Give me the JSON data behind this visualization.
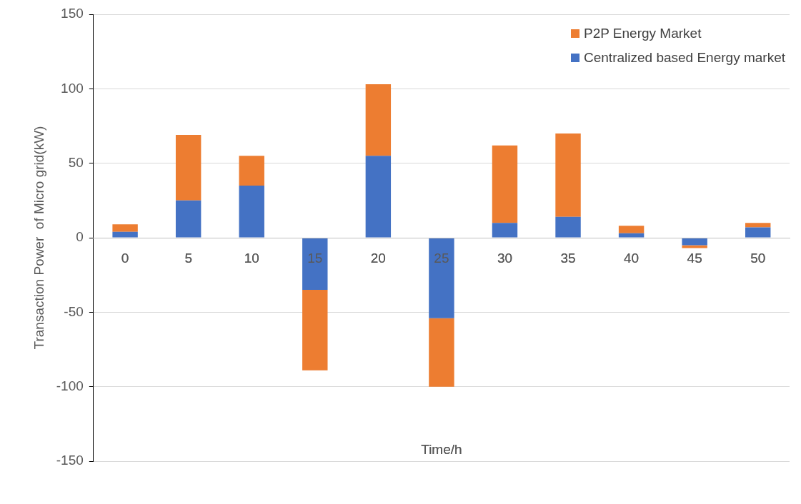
{
  "chart_data": {
    "type": "bar",
    "stacked": true,
    "xlabel": "Time/h",
    "ylabel": "Transaction Power  of Micro grid(kW)",
    "categories": [
      "0",
      "5",
      "10",
      "15",
      "20",
      "25",
      "30",
      "35",
      "40",
      "45",
      "50"
    ],
    "series": [
      {
        "name": "Centralized based Energy market",
        "color": "#4472c4",
        "values": [
          4,
          25,
          35,
          -35,
          55,
          -54,
          10,
          14,
          3,
          -5,
          7
        ]
      },
      {
        "name": "P2P Energy Market",
        "color": "#ed7d31",
        "values": [
          5,
          44,
          20,
          -54,
          48,
          -46,
          52,
          56,
          5,
          -2,
          3
        ]
      }
    ],
    "ylim": [
      -150,
      150
    ],
    "yticks": [
      -150,
      -100,
      -50,
      0,
      50,
      100,
      150
    ],
    "grid": "y",
    "legend": "top right"
  }
}
